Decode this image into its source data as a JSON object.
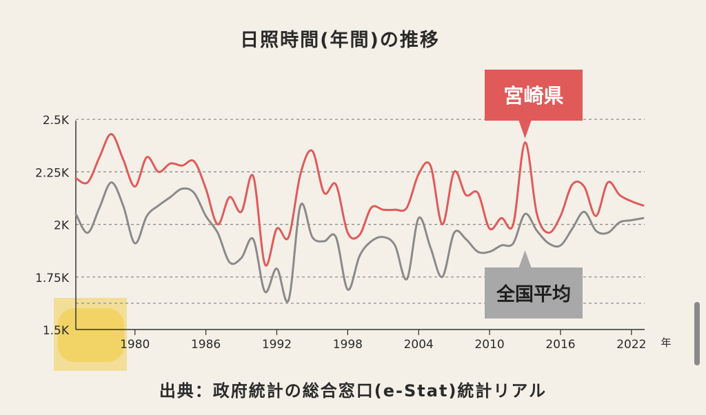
{
  "title": "日照時間(年間)の推移",
  "source": "出典：政府統計の総合窓口(e-Stat)統計リアル",
  "colors": {
    "background": "#f4f0e8",
    "miyazaki": "#e05a5a",
    "national": "#8a8a8a",
    "grid": "#8c8c8c",
    "highlight": "#f2cf55"
  },
  "chart_data": {
    "type": "line",
    "x_unit": "年",
    "x_ticks": [
      "1980",
      "1986",
      "1992",
      "1998",
      "2004",
      "2010",
      "2016",
      "2022"
    ],
    "y_ticks": [
      "1.5K",
      "1.75K",
      "2K",
      "2.25K",
      "2.5K"
    ],
    "ylim": [
      1500,
      2520
    ],
    "xlim": [
      1975,
      2023
    ],
    "grid": "dashed horizontal",
    "x": [
      1975,
      1976,
      1977,
      1978,
      1979,
      1980,
      1981,
      1982,
      1983,
      1984,
      1985,
      1986,
      1987,
      1988,
      1989,
      1990,
      1991,
      1992,
      1993,
      1994,
      1995,
      1996,
      1997,
      1998,
      1999,
      2000,
      2001,
      2002,
      2003,
      2004,
      2005,
      2006,
      2007,
      2008,
      2009,
      2010,
      2011,
      2012,
      2013,
      2014,
      2015,
      2016,
      2017,
      2018,
      2019,
      2020,
      2021,
      2022,
      2023
    ],
    "series": [
      {
        "name": "宮崎県",
        "label_position": "above, 2013",
        "values": [
          2220,
          2200,
          2320,
          2430,
          2310,
          2180,
          2320,
          2250,
          2290,
          2280,
          2300,
          2170,
          2000,
          2130,
          2060,
          2230,
          1810,
          1980,
          1940,
          2240,
          2350,
          2150,
          2190,
          1960,
          1950,
          2080,
          2070,
          2070,
          2080,
          2240,
          2280,
          2000,
          2250,
          2140,
          2150,
          1980,
          2030,
          2000,
          2390,
          2050,
          1960,
          2040,
          2190,
          2180,
          2040,
          2200,
          2140,
          2110,
          2090
        ]
      },
      {
        "name": "全国平均",
        "label_position": "below, 2013",
        "values": [
          2050,
          1960,
          2080,
          2200,
          2090,
          1910,
          2040,
          2090,
          2130,
          2170,
          2150,
          2040,
          1960,
          1820,
          1840,
          1930,
          1680,
          1790,
          1640,
          2090,
          1940,
          1920,
          1940,
          1690,
          1850,
          1920,
          1940,
          1900,
          1740,
          2030,
          1890,
          1750,
          1960,
          1930,
          1870,
          1870,
          1900,
          1910,
          2050,
          1970,
          1910,
          1900,
          1980,
          2060,
          1970,
          1960,
          2010,
          2020,
          2030
        ]
      }
    ],
    "highlight": "yellow rounded box over the lower-left corner of the axes"
  }
}
